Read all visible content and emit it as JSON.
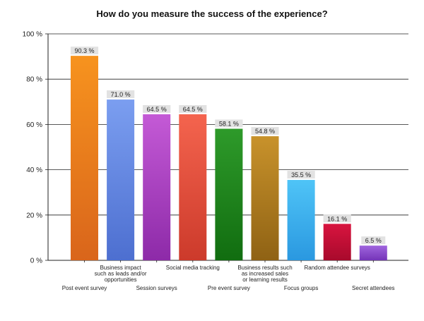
{
  "chart_data": {
    "type": "bar",
    "title": "How do you measure the success of the experience?",
    "xlabel": "",
    "ylabel": "",
    "ylim": [
      0,
      100
    ],
    "yticks": [
      0,
      20,
      40,
      60,
      80,
      100
    ],
    "ytick_labels": [
      "0 %",
      "20 %",
      "40 %",
      "60 %",
      "80 %",
      "100 %"
    ],
    "grid": true,
    "legend": "none",
    "categories": [
      "Post event survey",
      "Business impact such as leads and/or opportunities",
      "Session surveys",
      "Social media tracking",
      "Pre event survey",
      "Business results such as increased sales or learning results",
      "Focus groups",
      "Random attendee surveys",
      "Secret attendees"
    ],
    "category_display": [
      [
        "Post event survey"
      ],
      [
        "Business impact",
        "such as leads and/or",
        "opportunities"
      ],
      [
        "Session surveys"
      ],
      [
        "Social media tracking"
      ],
      [
        "Pre event survey"
      ],
      [
        "Business results such",
        "as increased sales",
        "or learning results"
      ],
      [
        "Focus groups"
      ],
      [
        "Random attendee surveys"
      ],
      [
        "Secret attendees"
      ]
    ],
    "values": [
      90.3,
      71.0,
      64.5,
      64.5,
      58.1,
      54.8,
      35.5,
      16.1,
      6.5
    ],
    "value_labels": [
      "90.3 %",
      "71.0 %",
      "64.5 %",
      "64.5 %",
      "58.1 %",
      "54.8 %",
      "35.5 %",
      "16.1 %",
      "6.5 %"
    ],
    "colors": [
      [
        "#f7931e",
        "#d9651b"
      ],
      [
        "#7b9ef0",
        "#4d6fd0"
      ],
      [
        "#c45ad6",
        "#8d2aa8"
      ],
      [
        "#f4644e",
        "#cc3a2b"
      ],
      [
        "#2e9a2a",
        "#116d10"
      ],
      [
        "#c8922b",
        "#8f6214"
      ],
      [
        "#4fc4f7",
        "#2a98e0"
      ],
      [
        "#d8143f",
        "#a80a2c"
      ],
      [
        "#a065de",
        "#7434b8"
      ]
    ]
  }
}
